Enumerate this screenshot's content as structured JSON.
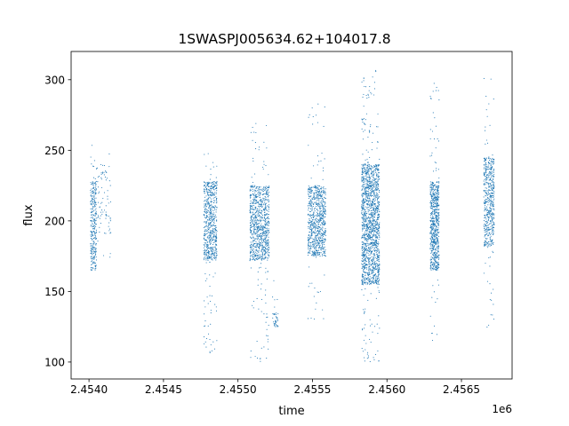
{
  "chart_data": {
    "type": "scatter",
    "title": "1SWASPJ005634.62+104017.8",
    "xlabel": "time",
    "ylabel": "flux",
    "x_offset_label": "1e6",
    "xlim": [
      2453830,
      2456790
    ],
    "ylim": [
      88,
      320
    ],
    "x_ticks": [
      {
        "value": 2453950,
        "label": "2.4540"
      },
      {
        "value": 2454450,
        "label": "2.4545"
      },
      {
        "value": 2454950,
        "label": "2.4550"
      },
      {
        "value": 2455450,
        "label": "2.4555"
      },
      {
        "value": 2455950,
        "label": "2.4560"
      },
      {
        "value": 2456450,
        "label": "2.4565"
      }
    ],
    "y_ticks": [
      {
        "value": 100,
        "label": "100"
      },
      {
        "value": 150,
        "label": "150"
      },
      {
        "value": 200,
        "label": "200"
      },
      {
        "value": 250,
        "label": "250"
      },
      {
        "value": 300,
        "label": "300"
      }
    ],
    "grid": false,
    "series_color": "#1f77b4",
    "observing_seasons": [
      {
        "x_start": 2453960,
        "x_end": 2454000,
        "core_y": [
          165,
          228
        ],
        "range_y": [
          158,
          255
        ]
      },
      {
        "x_start": 2454000,
        "x_end": 2454100,
        "core_y": [
          190,
          240
        ],
        "range_y": [
          158,
          248
        ]
      },
      {
        "x_start": 2454720,
        "x_end": 2454810,
        "core_y": [
          172,
          228
        ],
        "range_y": [
          105,
          250
        ]
      },
      {
        "x_start": 2455030,
        "x_end": 2455160,
        "core_y": [
          172,
          225
        ],
        "range_y": [
          100,
          270
        ]
      },
      {
        "x_start": 2455180,
        "x_end": 2455220,
        "core_y": [
          125,
          135
        ],
        "range_y": [
          125,
          160
        ]
      },
      {
        "x_start": 2455420,
        "x_end": 2455540,
        "core_y": [
          175,
          225
        ],
        "range_y": [
          130,
          290
        ]
      },
      {
        "x_start": 2455780,
        "x_end": 2455900,
        "core_y": [
          155,
          240
        ],
        "range_y": [
          98,
          308
        ]
      },
      {
        "x_start": 2456240,
        "x_end": 2456300,
        "core_y": [
          165,
          228
        ],
        "range_y": [
          115,
          298
        ]
      },
      {
        "x_start": 2456600,
        "x_end": 2456670,
        "core_y": [
          182,
          245
        ],
        "range_y": [
          122,
          305
        ]
      }
    ],
    "points_per_season": [
      300,
      80,
      650,
      900,
      40,
      800,
      1600,
      700,
      550
    ]
  }
}
